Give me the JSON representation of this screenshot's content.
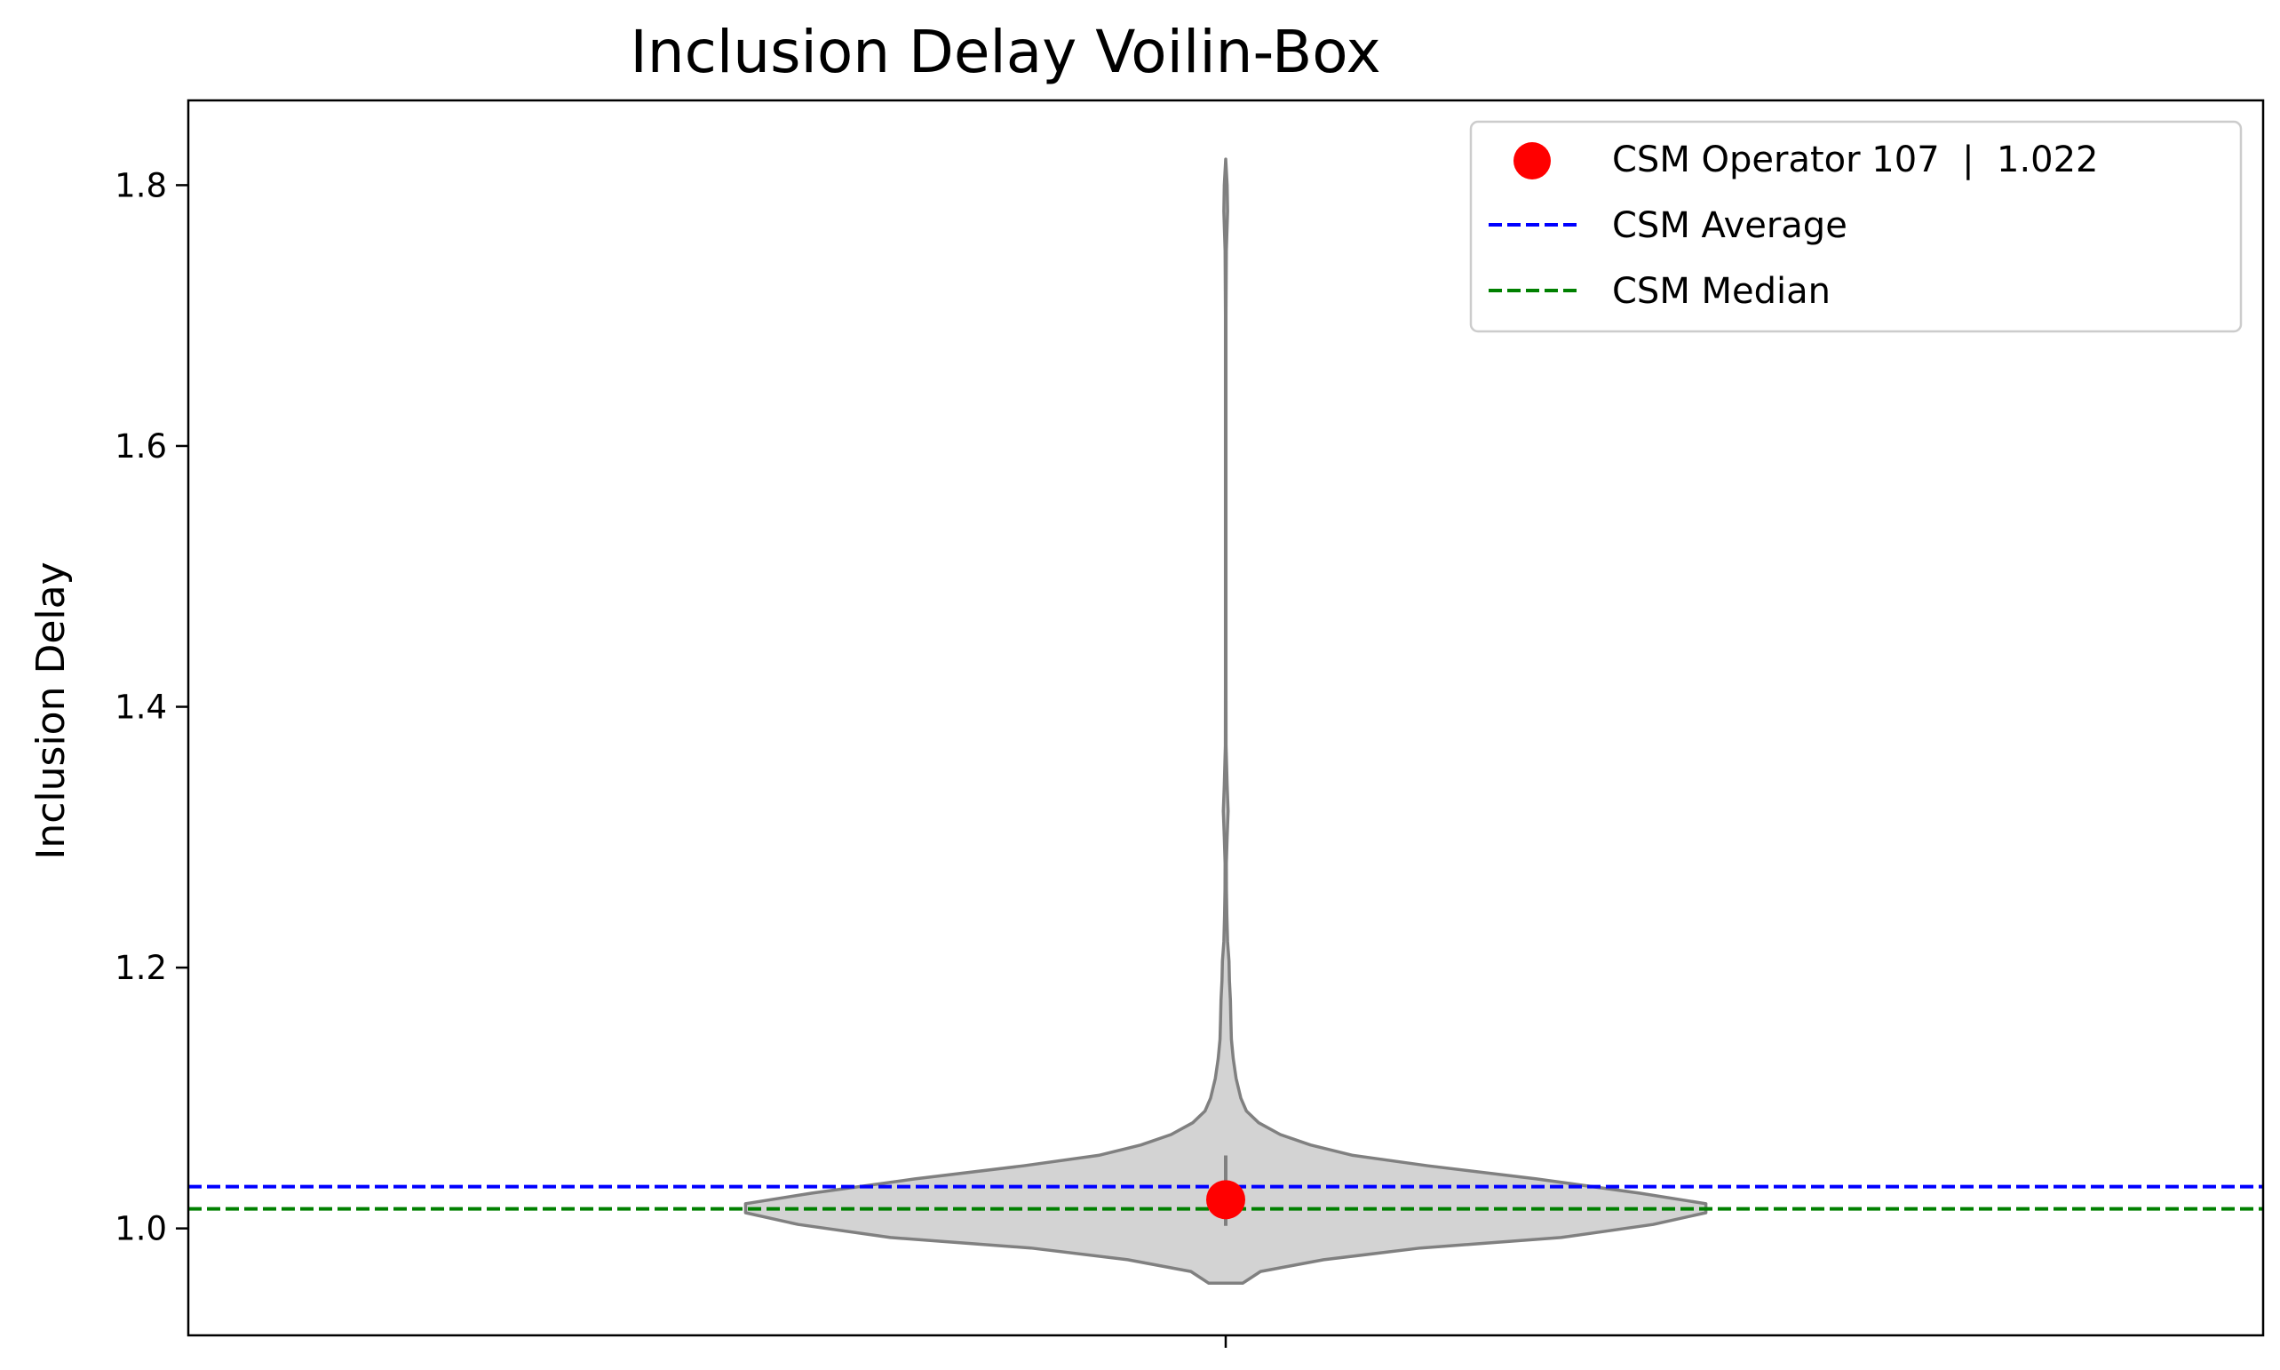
{
  "chart_data": {
    "type": "violin",
    "title": "Inclusion Delay Voilin-Box",
    "xlabel": "",
    "ylabel": "Inclusion Delay",
    "ylim": [
      0.918,
      1.865
    ],
    "yticks": [
      1.0,
      1.2,
      1.4,
      1.6,
      1.8
    ],
    "ytick_labels": [
      "1.0",
      "1.2",
      "1.4",
      "1.6",
      "1.8"
    ],
    "grid": false,
    "legend_position": "top-right",
    "violin": {
      "fill_color": "#d3d3d3",
      "edge_color": "#808080",
      "profile": [
        [
          0.958,
          0.018
        ],
        [
          0.967,
          0.037
        ],
        [
          0.976,
          0.104
        ],
        [
          0.985,
          0.207
        ],
        [
          0.993,
          0.356
        ],
        [
          1.003,
          0.454
        ],
        [
          1.012,
          0.51
        ],
        [
          1.019,
          0.51
        ],
        [
          1.027,
          0.44
        ],
        [
          1.038,
          0.33
        ],
        [
          1.048,
          0.215
        ],
        [
          1.056,
          0.135
        ],
        [
          1.064,
          0.09
        ],
        [
          1.072,
          0.058
        ],
        [
          1.081,
          0.035
        ],
        [
          1.09,
          0.022
        ],
        [
          1.1,
          0.016
        ],
        [
          1.115,
          0.011
        ],
        [
          1.13,
          0.008
        ],
        [
          1.145,
          0.006
        ],
        [
          1.16,
          0.0055
        ],
        [
          1.175,
          0.005
        ],
        [
          1.19,
          0.004
        ],
        [
          1.205,
          0.0035
        ],
        [
          1.22,
          0.002
        ],
        [
          1.24,
          0.0012
        ],
        [
          1.26,
          0.0008
        ],
        [
          1.28,
          0.0007
        ],
        [
          1.3,
          0.0015
        ],
        [
          1.32,
          0.0025
        ],
        [
          1.34,
          0.0015
        ],
        [
          1.37,
          0.0004
        ],
        [
          1.42,
          0.0003
        ],
        [
          1.5,
          0.0003
        ],
        [
          1.6,
          0.0003
        ],
        [
          1.7,
          0.0003
        ],
        [
          1.75,
          0.0007
        ],
        [
          1.78,
          0.002
        ],
        [
          1.8,
          0.0015
        ],
        [
          1.82,
          0.0
        ]
      ],
      "box": {
        "whisker_low": 1.002,
        "q1": 1.01,
        "q3": 1.03,
        "whisker_high": 1.056
      }
    },
    "operator_point": {
      "label": "CSM Operator 107  |  1.022",
      "value": 1.022,
      "color": "#ff0000"
    },
    "average_line": {
      "label": "CSM Average",
      "value": 1.032,
      "color": "#0000ff"
    },
    "median_line": {
      "label": "CSM Median",
      "value": 1.015,
      "color": "#008000"
    }
  }
}
